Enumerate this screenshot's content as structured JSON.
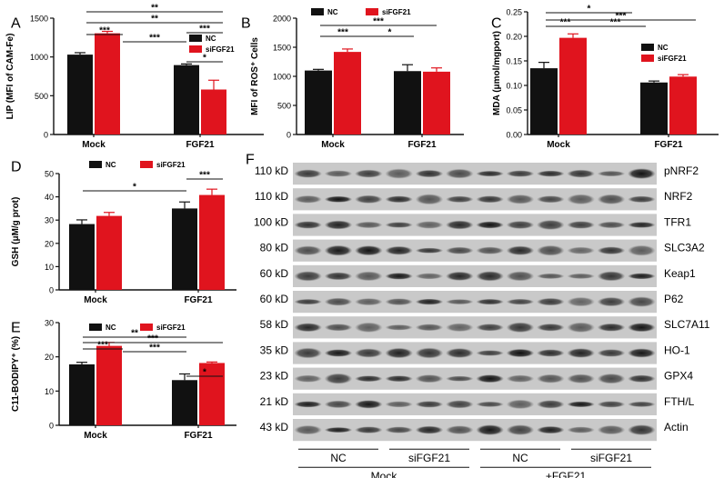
{
  "colors": {
    "nc": "#111111",
    "sifgf21": "#e0141e",
    "axis": "#111111"
  },
  "chart_data": [
    {
      "panel": "A",
      "type": "bar",
      "ylabel": "LIP (MFI of CAM-Fe)",
      "ylim": [
        0,
        1500
      ],
      "yticks": [
        "0",
        "500",
        "1000",
        "1500"
      ],
      "categories": [
        "Mock",
        "FGF21"
      ],
      "series": [
        {
          "name": "NC",
          "values": [
            1030,
            895
          ],
          "errors": [
            25,
            15
          ]
        },
        {
          "name": "siFGF21",
          "values": [
            1305,
            580
          ],
          "errors": [
            25,
            120
          ]
        }
      ],
      "significance": [
        "***",
        "**",
        "**",
        "***",
        "***",
        "*"
      ],
      "legend": "right"
    },
    {
      "panel": "B",
      "type": "bar",
      "ylabel": "MFI of ROS⁺ Cells",
      "ylim": [
        0,
        2000
      ],
      "yticks": [
        "0",
        "500",
        "1000",
        "1500",
        "2000"
      ],
      "categories": [
        "Mock",
        "FGF21"
      ],
      "series": [
        {
          "name": "NC",
          "values": [
            1100,
            1090
          ],
          "errors": [
            20,
            110
          ]
        },
        {
          "name": "siFGF21",
          "values": [
            1420,
            1080
          ],
          "errors": [
            50,
            65
          ]
        }
      ],
      "significance": [
        "***",
        "***",
        "*"
      ],
      "legend": "top"
    },
    {
      "panel": "C",
      "type": "bar",
      "ylabel": "MDA (μmol/mgport)",
      "ylim": [
        0,
        0.25
      ],
      "yticks": [
        "0.00",
        "0.05",
        "0.10",
        "0.15",
        "0.20",
        "0.25"
      ],
      "categories": [
        "Mock",
        "FGF21"
      ],
      "series": [
        {
          "name": "NC",
          "values": [
            0.135,
            0.106
          ],
          "errors": [
            0.012,
            0.003
          ]
        },
        {
          "name": "siFGF21",
          "values": [
            0.197,
            0.118
          ],
          "errors": [
            0.008,
            0.004
          ]
        }
      ],
      "significance": [
        "*",
        "***",
        "***",
        "***"
      ],
      "legend": "right"
    },
    {
      "panel": "D",
      "type": "bar",
      "ylabel": "GSH (μM/g prot)",
      "ylim": [
        0,
        50
      ],
      "yticks": [
        "0",
        "10",
        "20",
        "30",
        "40",
        "50"
      ],
      "categories": [
        "Mock",
        "FGF21"
      ],
      "series": [
        {
          "name": "NC",
          "values": [
            28.3,
            35.0
          ],
          "errors": [
            1.8,
            2.8
          ]
        },
        {
          "name": "siFGF21",
          "values": [
            31.8,
            40.8
          ],
          "errors": [
            1.5,
            2.5
          ]
        }
      ],
      "significance": [
        "***",
        "*"
      ],
      "legend": "top"
    },
    {
      "panel": "E",
      "type": "bar",
      "ylabel": "C11-BODIPY⁺ (%)",
      "ylim": [
        0,
        30
      ],
      "yticks": [
        "0",
        "10",
        "20",
        "30"
      ],
      "categories": [
        "Mock",
        "FGF21"
      ],
      "series": [
        {
          "name": "NC",
          "values": [
            17.8,
            13.2
          ],
          "errors": [
            0.6,
            1.8
          ]
        },
        {
          "name": "siFGF21",
          "values": [
            23.2,
            18.2
          ],
          "errors": [
            1.0,
            0.3
          ]
        }
      ],
      "significance": [
        "**",
        "***",
        "***",
        "***",
        "*"
      ],
      "legend": "top"
    }
  ],
  "western_blot": {
    "panel": "F",
    "rows": [
      {
        "size": "110 kD",
        "protein": "pNRF2"
      },
      {
        "size": "110 kD",
        "protein": "NRF2"
      },
      {
        "size": "100 kD",
        "protein": "TFR1"
      },
      {
        "size": "80 kD",
        "protein": "SLC3A2"
      },
      {
        "size": "60 kD",
        "protein": "Keap1"
      },
      {
        "size": "60 kD",
        "protein": "P62"
      },
      {
        "size": "58 kD",
        "protein": "SLC7A11"
      },
      {
        "size": "35 kD",
        "protein": "HO-1"
      },
      {
        "size": "23 kD",
        "protein": "GPX4"
      },
      {
        "size": "21 kD",
        "protein": "FTH/L"
      },
      {
        "size": "43 kD",
        "protein": "Actin"
      }
    ],
    "groups": [
      "NC",
      "siFGF21",
      "NC",
      "siFGF21"
    ],
    "conditions": [
      "Mock",
      "+FGF21"
    ]
  }
}
